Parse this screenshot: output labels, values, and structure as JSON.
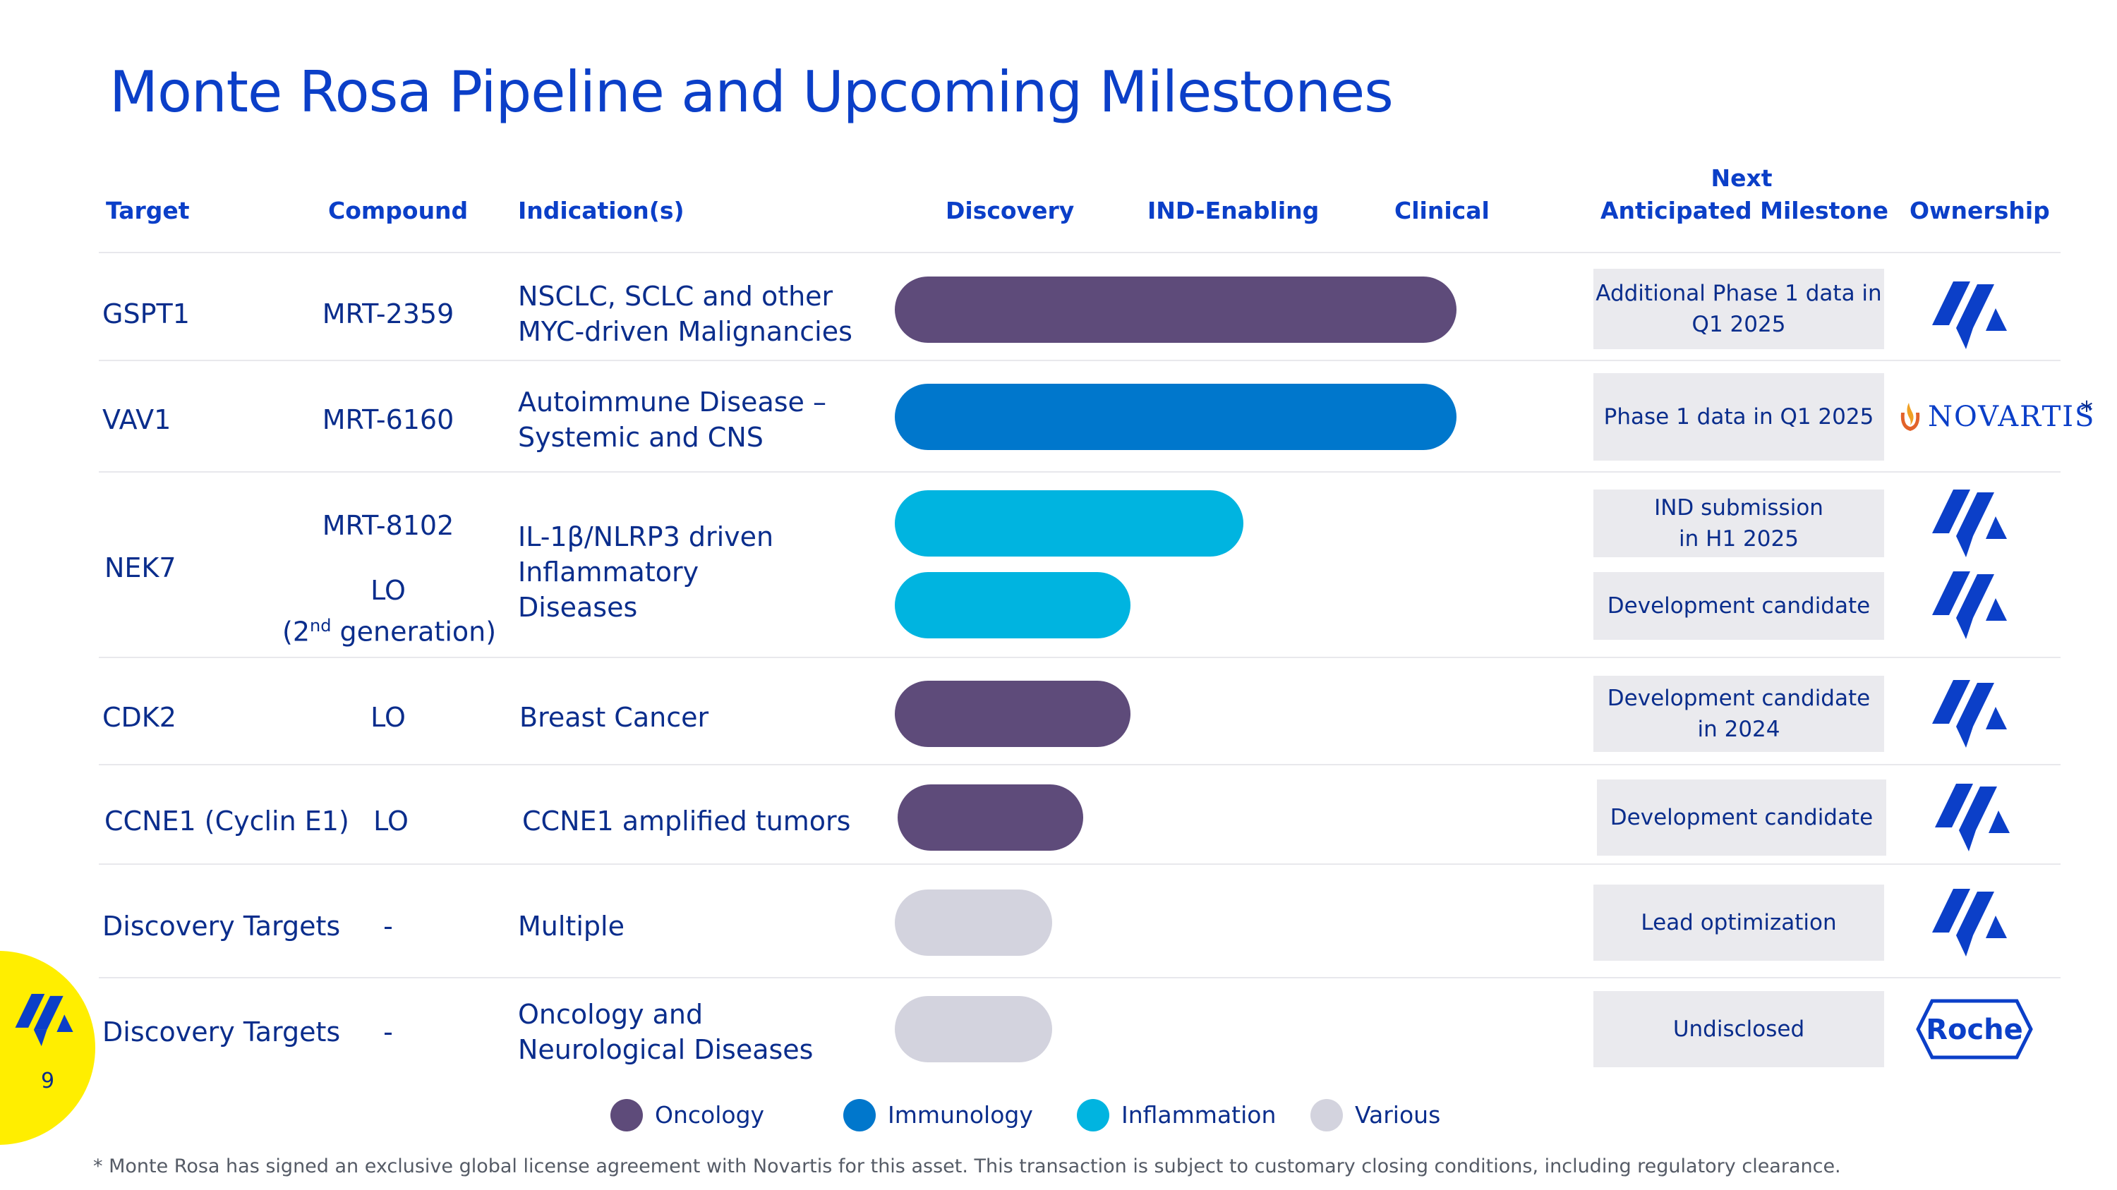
{
  "title": "Monte Rosa Pipeline and Upcoming Milestones",
  "headers": {
    "target": "Target",
    "compound": "Compound",
    "indication": "Indication(s)",
    "discovery": "Discovery",
    "ind_enabling": "IND-Enabling",
    "clinical": "Clinical",
    "milestone_line1": "Next",
    "milestone_line2": "Anticipated Milestone",
    "ownership": "Ownership"
  },
  "rows": [
    {
      "target": "GSPT1",
      "compound": "MRT-2359",
      "indication_l1": "NSCLC, SCLC and other",
      "indication_l2": "MYC-driven Malignancies",
      "milestone": "Additional Phase 1 data in\nQ1 2025",
      "area": "Oncology",
      "stage_progress": 1.0,
      "owner": "monte-rosa-logo"
    },
    {
      "target": "VAV1",
      "compound": "MRT-6160",
      "indication_l1": "Autoimmune Disease –",
      "indication_l2": "Systemic and CNS",
      "milestone": "Phase 1 data in Q1 2025",
      "area": "Immunology",
      "stage_progress": 1.0,
      "owner": "novartis-logo"
    },
    {
      "target": "NEK7",
      "compound_a": "MRT-8102",
      "compound_b_l1": "LO",
      "compound_b_l2_pre": "(2",
      "compound_b_sup": "nd",
      "compound_b_l2_post": " generation)",
      "indication_l1": "IL-1β/NLRP3 driven",
      "indication_l2": "Inflammatory",
      "indication_l3": "Diseases",
      "milestone_a": "IND submission\nin H1 2025",
      "milestone_b": "Development candidate",
      "area": "Inflammation",
      "stage_progress_a": 0.62,
      "stage_progress_b": 0.42,
      "owner": "monte-rosa-logo"
    },
    {
      "target": "CDK2",
      "compound": "LO",
      "indication": "Breast Cancer",
      "milestone": "Development candidate\nin 2024",
      "area": "Oncology",
      "stage_progress": 0.42,
      "owner": "monte-rosa-logo"
    },
    {
      "target": "CCNE1 (Cyclin E1)",
      "compound": "LO",
      "indication": "CCNE1 amplified tumors",
      "milestone": "Development candidate",
      "area": "Oncology",
      "stage_progress": 0.33,
      "owner": "monte-rosa-logo"
    },
    {
      "target": "Discovery Targets",
      "compound": "-",
      "indication": "Multiple",
      "milestone": "Lead optimization",
      "area": "Various",
      "stage_progress": 0.28,
      "owner": "monte-rosa-logo"
    },
    {
      "target": "Discovery Targets",
      "compound": "-",
      "indication_l1": "Oncology and",
      "indication_l2": "Neurological Diseases",
      "milestone": "Undisclosed",
      "area": "Various",
      "stage_progress": 0.28,
      "owner": "roche-logo"
    }
  ],
  "owners": {
    "novartis": "NOVARTIS",
    "novartis_mark": "*",
    "roche": "Roche"
  },
  "legend": [
    {
      "label": "Oncology",
      "color": "#5e4b7a"
    },
    {
      "label": "Immunology",
      "color": "#0077cc"
    },
    {
      "label": "Inflammation",
      "color": "#00b4e0"
    },
    {
      "label": "Various",
      "color": "#d3d3de"
    }
  ],
  "colors": {
    "oncology": "#5e4b7a",
    "immunology": "#0077cc",
    "inflammation": "#00b4e0",
    "various": "#d3d3de",
    "brand_blue": "#0b3fc8",
    "yellow": "#ffee00"
  },
  "page_number": "9",
  "footnote": "* Monte Rosa has signed an exclusive global license agreement with Novartis for this asset. This transaction is subject to customary closing conditions, including regulatory clearance."
}
